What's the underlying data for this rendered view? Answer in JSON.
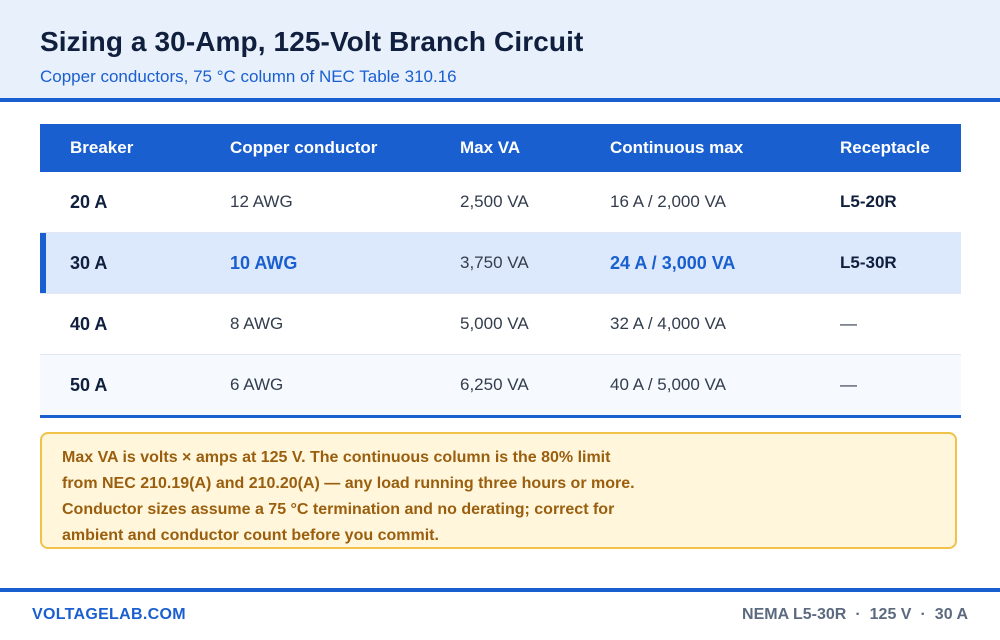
{
  "header": {
    "title": "Sizing a 30-Amp, 125-Volt Branch Circuit",
    "subtitle": "Copper conductors, 75 °C column of NEC Table 310.16"
  },
  "table": {
    "columns": [
      "Breaker",
      "Copper conductor",
      "Max VA",
      "Continuous max",
      "Receptacle"
    ],
    "rows": [
      {
        "breaker": "20 A",
        "conductor": "12 AWG",
        "max_va": "2,500 VA",
        "continuous": "16 A / 2,000 VA",
        "receptacle": "L5-20R"
      },
      {
        "breaker": "30 A",
        "conductor": "10 AWG",
        "max_va": "3,750 VA",
        "continuous": "24 A / 3,000 VA",
        "receptacle": "L5-30R"
      },
      {
        "breaker": "40 A",
        "conductor": "8 AWG",
        "max_va": "5,000 VA",
        "continuous": "32 A / 4,000 VA",
        "receptacle": "—"
      },
      {
        "breaker": "50 A",
        "conductor": "6 AWG",
        "max_va": "6,250 VA",
        "continuous": "40 A / 5,000 VA",
        "receptacle": "—"
      }
    ]
  },
  "note": {
    "lines": [
      "Max VA is volts × amps at 125 V. The continuous column is the 80% limit",
      "from NEC 210.19(A) and 210.20(A) — any load running three hours or more.",
      "Conductor sizes assume a 75 °C termination and no derating; correct for",
      "ambient and conductor count before you commit."
    ]
  },
  "footer": {
    "site": "VOLTAGELAB.COM",
    "spec_receptacle": "NEMA L5-30R",
    "spec_voltage": "125 V",
    "spec_amps": "30 A",
    "separator": "·"
  },
  "colors": {
    "accent": "#1a5fd0",
    "header_bg": "#e8f0fc",
    "highlight_row": "#dce8fb",
    "note_bg": "#fff6dc",
    "note_border": "#f0c24a",
    "note_text": "#9a5f0e"
  }
}
